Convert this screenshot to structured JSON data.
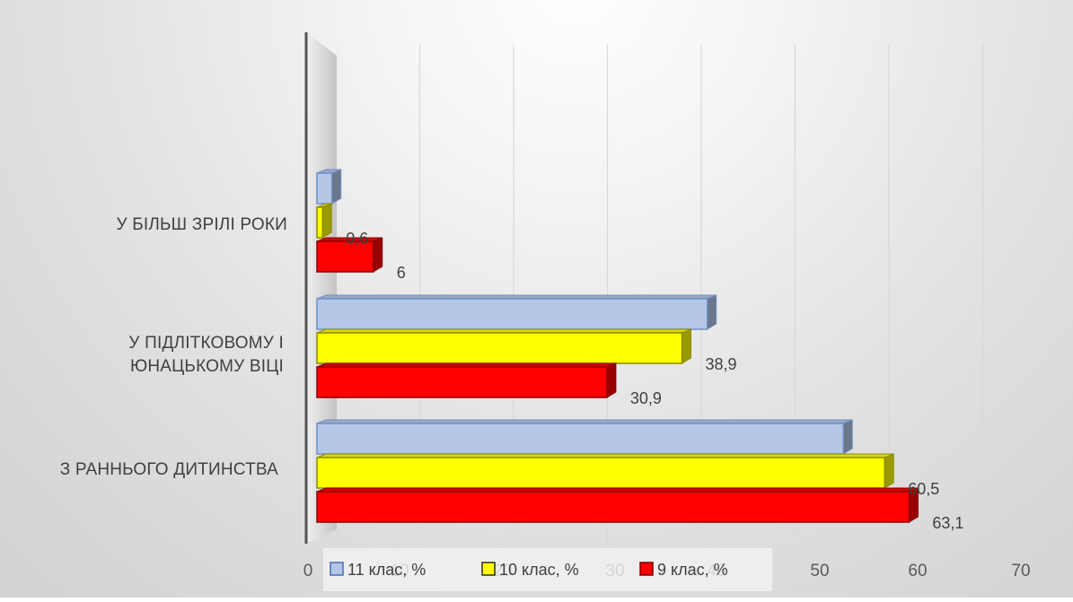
{
  "colors": {
    "series_11": "#b4c7e7",
    "series_10": "#ffff00",
    "series_9": "#ff0000",
    "axis": "#555555",
    "label_text": "#404040"
  },
  "chart_data": {
    "type": "bar",
    "orientation": "horizontal",
    "three_d": true,
    "categories": [
      "З РАННЬОГО ДИТИНСТВА",
      "У ПІДЛІТКОВОМУ І ЮНАЦЬКОМУ ВІЦІ",
      "У БІЛЬШ ЗРІЛІ РОКИ"
    ],
    "series": [
      {
        "name": "11 клас, %",
        "values": [
          56.1,
          41.6,
          1.6
        ],
        "labels": [
          "",
          "",
          ""
        ]
      },
      {
        "name": "10 клас, %",
        "values": [
          60.5,
          38.9,
          0.6
        ],
        "labels": [
          "60,5",
          "38,9",
          "0,6"
        ]
      },
      {
        "name": "9 клас, %",
        "values": [
          63.1,
          30.9,
          6
        ],
        "labels": [
          "63,1",
          "30,9",
          "6"
        ]
      }
    ],
    "x_ticks": [
      "0",
      "10",
      "20",
      "30",
      "40",
      "50",
      "60",
      "70"
    ],
    "xlim": [
      0,
      70
    ],
    "grid": true,
    "legend_position": "bottom"
  }
}
